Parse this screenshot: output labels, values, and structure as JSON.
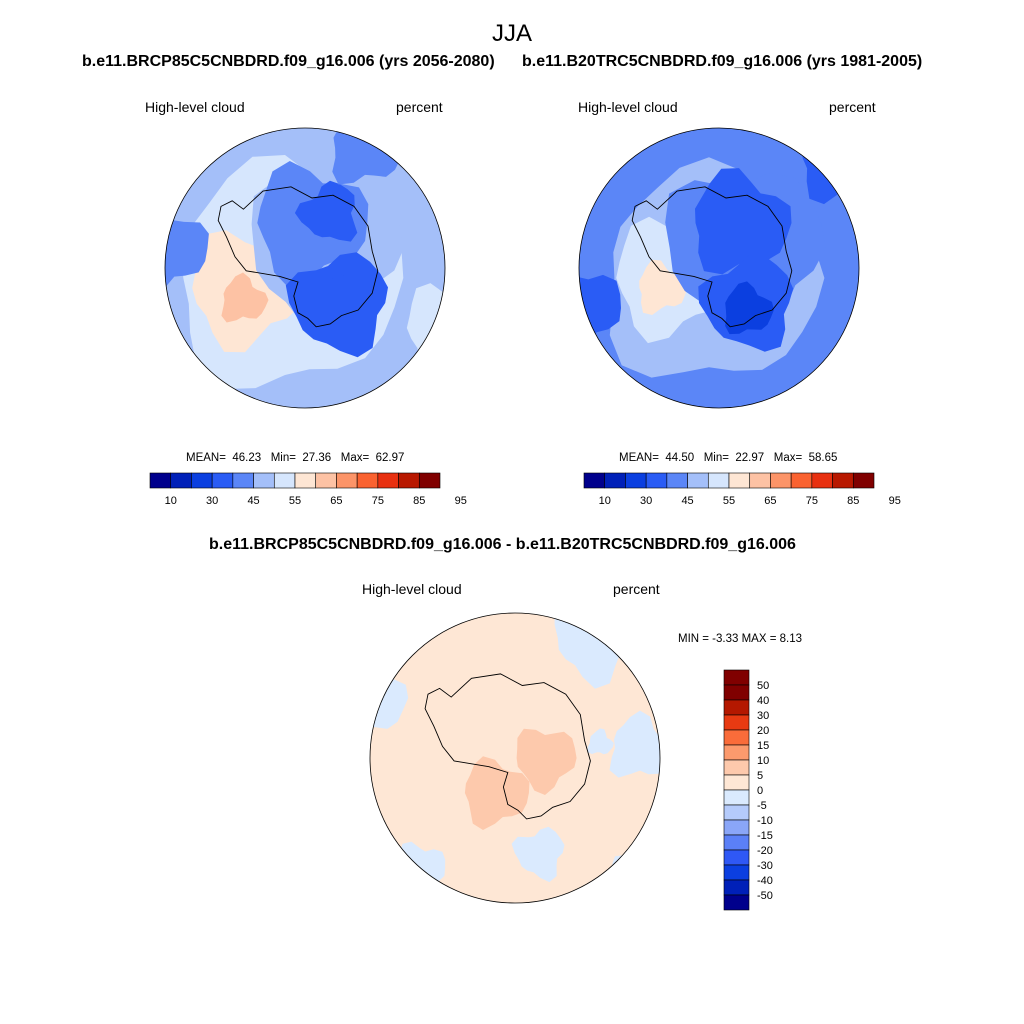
{
  "main_title": "JJA",
  "colors": {
    "palette_abs": [
      "#00008c",
      "#0020b8",
      "#0b3fe0",
      "#2a5cf5",
      "#5b86f7",
      "#a4bff9",
      "#d6e6fd",
      "#fee6d4",
      "#fdc2a4",
      "#fc9468",
      "#fa6230",
      "#e83010",
      "#b81800",
      "#800000"
    ],
    "palette_diff": [
      "#00008c",
      "#0020b8",
      "#0b3fe0",
      "#2f58f5",
      "#5b80f7",
      "#8aa6f8",
      "#b5cbfb",
      "#daeafe",
      "#fee7d5",
      "#fdc9ac",
      "#fc9a6d",
      "#fa6c3a",
      "#e83a12",
      "#b41800",
      "#800000"
    ],
    "coast": "#000000",
    "frame": "#000000"
  },
  "chart_data": [
    {
      "type": "heatmap",
      "projection": "south-polar-stereographic",
      "title": "b.e11.BRCP85C5CNBDRD.f09_g16.006 (yrs 2056-2080)",
      "left_label": "High-level cloud",
      "right_label": "percent",
      "stats": {
        "mean_label": "MEAN=",
        "mean": "46.23",
        "min_label": "Min=",
        "min": "27.36",
        "max_label": "Max=",
        "max": "62.97"
      },
      "levels": [
        10,
        20,
        30,
        40,
        45,
        50,
        55,
        60,
        65,
        70,
        75,
        80,
        85,
        90,
        95
      ],
      "tick_labels": [
        "10",
        "30",
        "45",
        "55",
        "65",
        "75",
        "85",
        "95"
      ],
      "field_description_range": [
        27.36,
        62.97
      ]
    },
    {
      "type": "heatmap",
      "projection": "south-polar-stereographic",
      "title": "b.e11.B20TRC5CNBDRD.f09_g16.006 (yrs 1981-2005)",
      "left_label": "High-level cloud",
      "right_label": "percent",
      "stats": {
        "mean_label": "MEAN=",
        "mean": "44.50",
        "min_label": "Min=",
        "min": "22.97",
        "max_label": "Max=",
        "max": "58.65"
      },
      "levels": [
        10,
        20,
        30,
        40,
        45,
        50,
        55,
        60,
        65,
        70,
        75,
        80,
        85,
        90,
        95
      ],
      "tick_labels": [
        "10",
        "30",
        "45",
        "55",
        "65",
        "75",
        "85",
        "95"
      ],
      "field_description_range": [
        22.97,
        58.65
      ]
    },
    {
      "type": "heatmap",
      "projection": "south-polar-stereographic",
      "title": "b.e11.BRCP85C5CNBDRD.f09_g16.006 - b.e11.B20TRC5CNBDRD.f09_g16.006",
      "left_label": "High-level cloud",
      "right_label": "percent",
      "stats": {
        "text": "MIN =  -3.33 MAX =   8.13",
        "min": -3.33,
        "max": 8.13
      },
      "levels": [
        -50,
        -40,
        -30,
        -20,
        -15,
        -10,
        -5,
        0,
        5,
        10,
        15,
        20,
        30,
        40,
        50
      ],
      "tick_labels": [
        "50",
        "40",
        "30",
        "20",
        "15",
        "10",
        "5",
        "0",
        "-5",
        "-10",
        "-15",
        "-20",
        "-30",
        "-40",
        "-50"
      ]
    }
  ]
}
